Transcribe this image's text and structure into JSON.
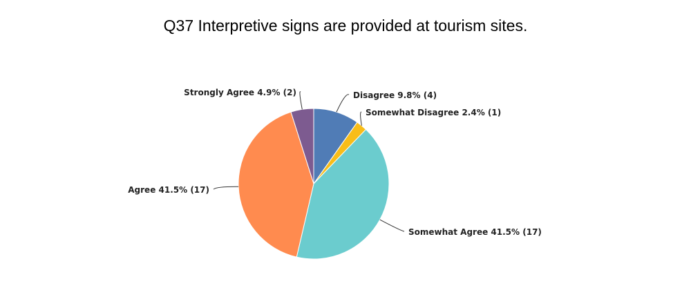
{
  "chart_data": {
    "type": "pie",
    "title": "Q37 Interpretive signs are provided at tourism sites.",
    "slices": [
      {
        "label": "Disagree",
        "percent": 9.8,
        "count": 4,
        "color": "#507cb6",
        "display": "Disagree 9.8% (4)"
      },
      {
        "label": "Somewhat Disagree",
        "percent": 2.4,
        "count": 1,
        "color": "#f8bd19",
        "display": "Somewhat Disagree 2.4% (1)"
      },
      {
        "label": "Somewhat Agree",
        "percent": 41.5,
        "count": 17,
        "color": "#6bccce",
        "display": "Somewhat Agree 41.5% (17)"
      },
      {
        "label": "Agree",
        "percent": 41.5,
        "count": 17,
        "color": "#ff8b4f",
        "display": "Agree 41.5% (17)"
      },
      {
        "label": "Strongly Agree",
        "percent": 4.9,
        "count": 2,
        "color": "#7d5b90",
        "display": "Strongly Agree 4.9% (2)"
      }
    ]
  }
}
